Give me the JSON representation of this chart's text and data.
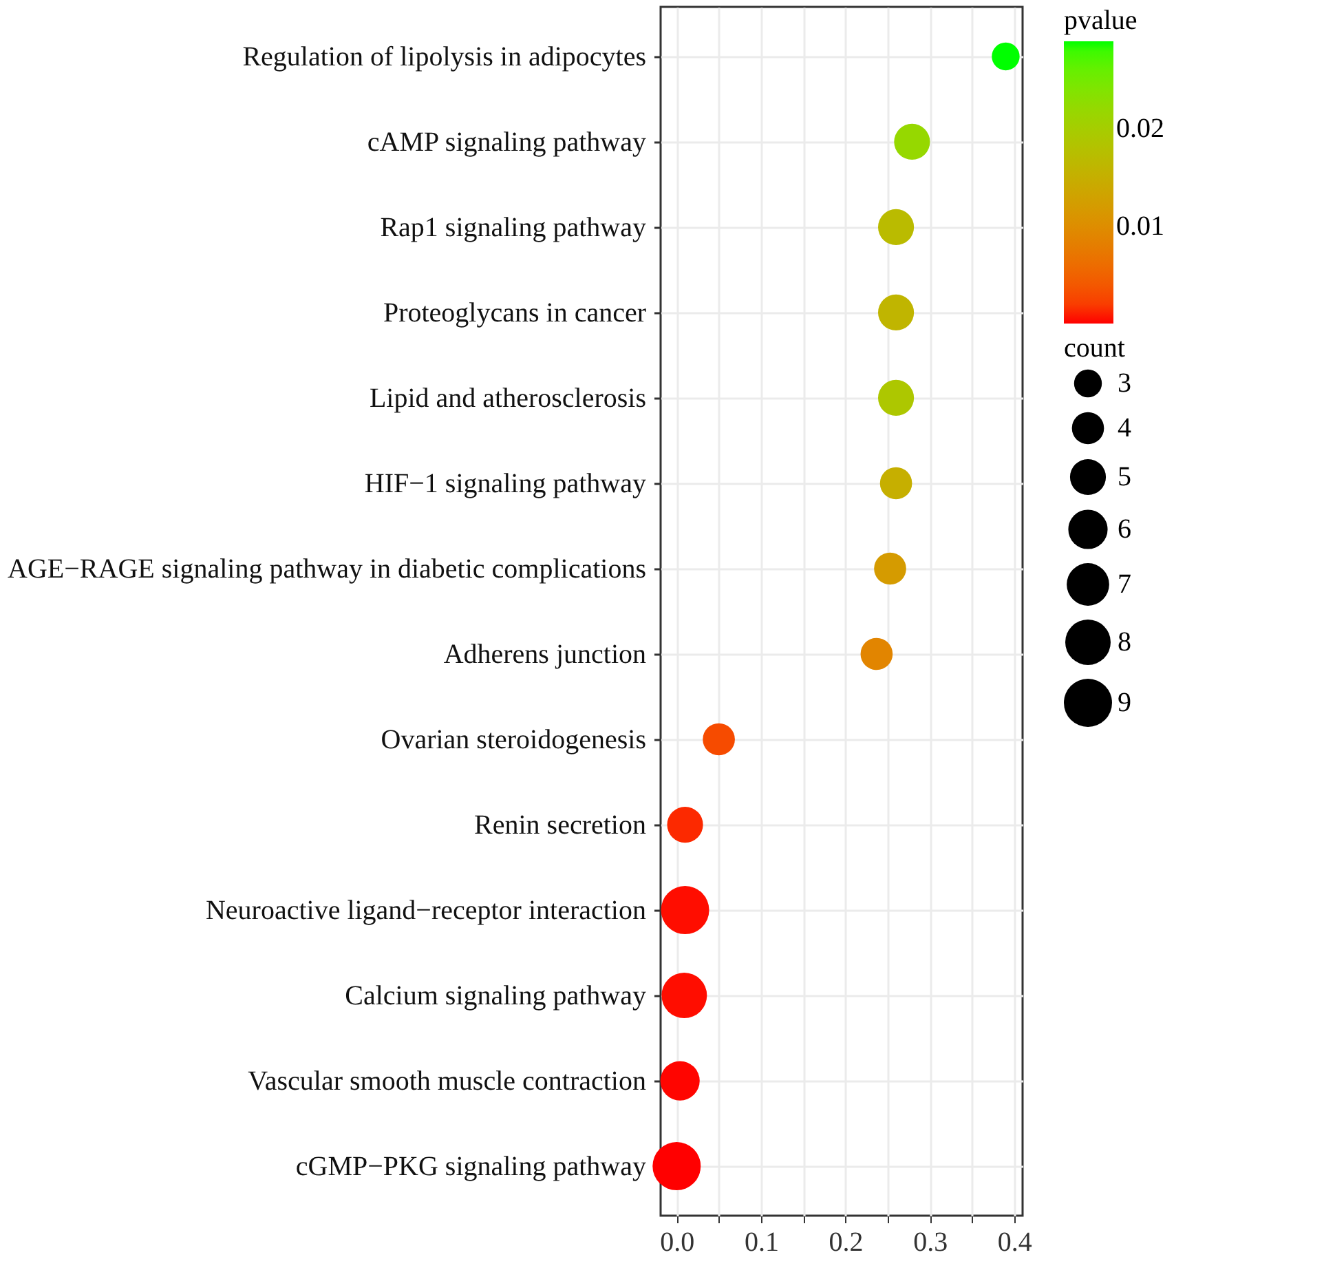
{
  "chart_data": {
    "type": "bubble",
    "orientation": "horizontal",
    "categories": [
      "Regulation of lipolysis in adipocytes",
      "cAMP signaling pathway",
      "Rap1 signaling pathway",
      "Proteoglycans in cancer",
      "Lipid and atherosclerosis",
      "HIF−1 signaling pathway",
      "AGE−RAGE signaling pathway in diabetic complications",
      "Adherens junction",
      "Ovarian steroidogenesis",
      "Renin secretion",
      "Neuroactive ligand−receptor interaction",
      "Calcium signaling pathway",
      "Vascular smooth muscle contraction",
      "cGMP−PKG signaling pathway"
    ],
    "values": [
      0.39,
      0.279,
      0.26,
      0.26,
      0.26,
      0.26,
      0.253,
      0.237,
      0.05,
      0.01,
      0.01,
      0.009,
      0.004,
      0.0
    ],
    "sizes": [
      3,
      5,
      5,
      5,
      5,
      4,
      4,
      4,
      4,
      5,
      9,
      8,
      6,
      9
    ],
    "size_legend": [
      3,
      4,
      5,
      6,
      7,
      8,
      9
    ],
    "cvalues": [
      0.029,
      0.022,
      0.017,
      0.016,
      0.019,
      0.015,
      0.012,
      0.009,
      0.003,
      0.001,
      0.0002,
      0.0002,
      0.0001,
      3e-05
    ],
    "clim": [
      3e-05,
      0.029
    ],
    "cticks": [
      0.01,
      0.02
    ],
    "clabel": "pvalue",
    "legend_title": "count",
    "xlim": [
      -0.019,
      0.41
    ],
    "xticks": [
      {
        "value": 0,
        "label": "0.0"
      },
      {
        "value": 0.05,
        "label": null
      },
      0.1,
      {
        "value": 0.15,
        "label": null
      },
      0.2,
      {
        "value": 0.25,
        "label": null
      },
      0.3,
      {
        "value": 0.35,
        "label": null
      },
      0.4
    ],
    "grid": true,
    "marker": "circle"
  }
}
